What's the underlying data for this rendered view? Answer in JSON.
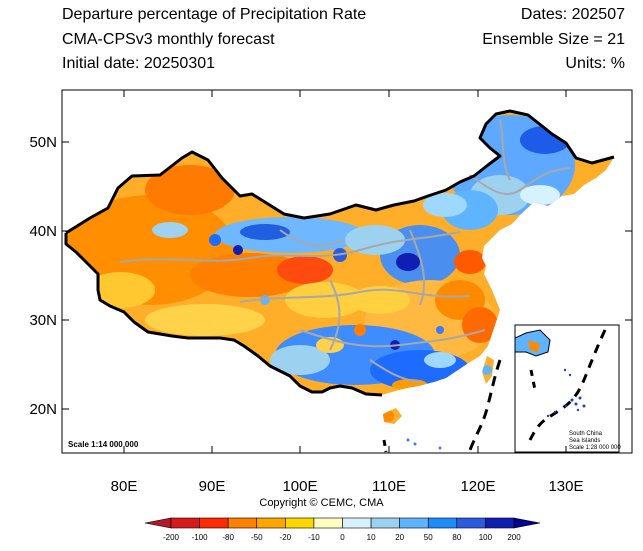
{
  "header": {
    "title": "Departure percentage of Precipitation Rate",
    "subtitle": "CMA-CPSv3 monthly forecast",
    "initial_date": "Initial date: 20250301",
    "dates": "Dates: 202507",
    "ensemble": "Ensemble Size = 21",
    "units": "Units: %"
  },
  "axes": {
    "lon_labels": [
      "80E",
      "90E",
      "100E",
      "110E",
      "120E",
      "130E"
    ],
    "lat_labels": [
      "50N",
      "40N",
      "30N",
      "20N"
    ],
    "lon_range": [
      73,
      135
    ],
    "lat_range": [
      15,
      56
    ]
  },
  "scale_label": "Scale 1:14 000 000",
  "inset": {
    "title": "South China",
    "line2": "Sea Islands",
    "scale": "Scale 1:28 000 000"
  },
  "copyright": "Copyright © CEMC, CMA",
  "colorbar": {
    "levels": [
      "-200",
      "-100",
      "-80",
      "-50",
      "-20",
      "-10",
      "0",
      "10",
      "20",
      "50",
      "80",
      "100",
      "200"
    ],
    "colors": [
      "#b2182b",
      "#d7191c",
      "#ff2a00",
      "#ff7f00",
      "#ffa500",
      "#ffd700",
      "#ffffbf",
      "#d6f2ff",
      "#9cd2f0",
      "#5fb4ff",
      "#1e8cff",
      "#2d5be0",
      "#0f1fb4",
      "#000090"
    ]
  },
  "colors": {
    "border": "#000000",
    "river": "#a8a8a8",
    "dry": "#ff9a00",
    "wet": "#3a7bff"
  }
}
